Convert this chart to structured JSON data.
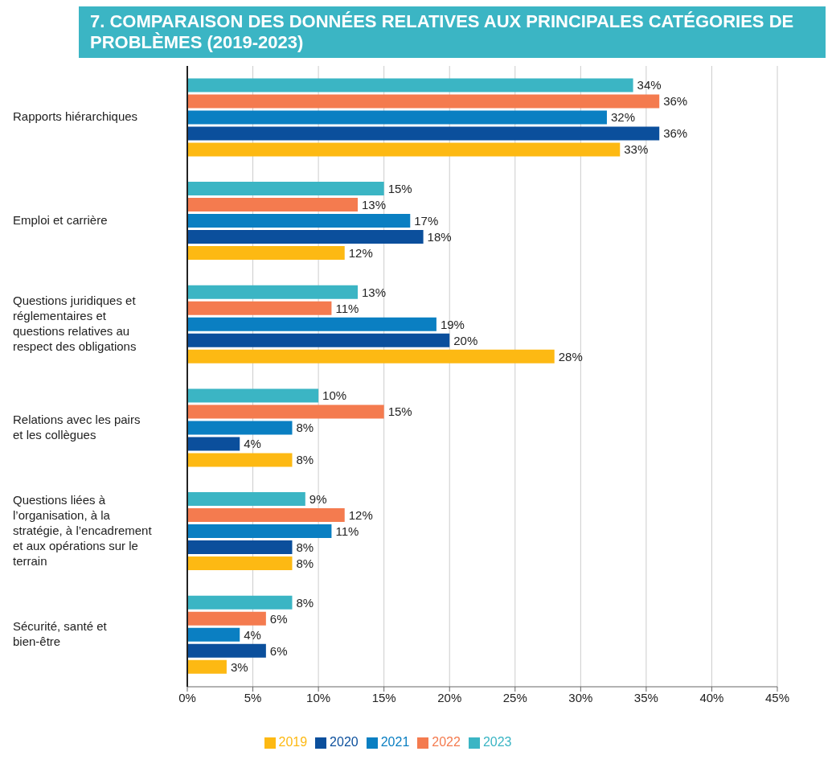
{
  "chart_data": {
    "type": "bar",
    "orientation": "horizontal",
    "title": "7. COMPARAISON DES DONNÉES RELATIVES AUX PRINCIPALES CATÉGORIES DE PROBLÈMES (2019-2023)",
    "categories": [
      "Rapports hiérarchiques",
      "Emploi et carrière",
      "Questions juridiques et réglementaires et questions relatives au respect des obligations",
      "Relations avec les pairs et les collègues",
      "Questions liées à l’organisation, à la stratégie, à l’encadrement et aux opérations sur le terrain",
      "Sécurité, santé et bien-être"
    ],
    "series": [
      {
        "name": "2023",
        "color": "#3bb5c4",
        "values": [
          34,
          15,
          13,
          10,
          9,
          8
        ],
        "value_labels": [
          "34%",
          "15%",
          "13%",
          "10%",
          "9%",
          "8%"
        ]
      },
      {
        "name": "2022",
        "color": "#f47b4f",
        "values": [
          36,
          13,
          11,
          15,
          12,
          6
        ],
        "value_labels": [
          "36%",
          "13%",
          "11%",
          "15%",
          "12%",
          "6%"
        ]
      },
      {
        "name": "2021",
        "color": "#0a7fc2",
        "values": [
          32,
          17,
          19,
          8,
          11,
          4
        ],
        "value_labels": [
          "32%",
          "17%",
          "19%",
          "8%",
          "11%",
          "4%"
        ]
      },
      {
        "name": "2020",
        "color": "#0b4f9c",
        "values": [
          36,
          18,
          20,
          4,
          8,
          6
        ],
        "value_labels": [
          "36%",
          "18%",
          "20%",
          "4%",
          "8%",
          "6%"
        ]
      },
      {
        "name": "2019",
        "color": "#fdb913",
        "values": [
          33,
          12,
          28,
          8,
          8,
          3
        ],
        "value_labels": [
          "33%",
          "12%",
          "28%",
          "8%",
          "8%",
          "3%"
        ]
      }
    ],
    "xlim": [
      0,
      45
    ],
    "xticks": [
      {
        "value": 0,
        "label": "0%"
      },
      {
        "value": 5,
        "label": "5%"
      },
      {
        "value": 10,
        "label": "10%"
      },
      {
        "value": 15,
        "label": "15%"
      },
      {
        "value": 20,
        "label": "20%"
      },
      {
        "value": 25,
        "label": "25%"
      },
      {
        "value": 30,
        "label": "30%"
      },
      {
        "value": 35,
        "label": "35%"
      },
      {
        "value": 40,
        "label": "40%"
      },
      {
        "value": 45,
        "label": "45%"
      }
    ],
    "grid": "x",
    "legend": "bottom"
  }
}
